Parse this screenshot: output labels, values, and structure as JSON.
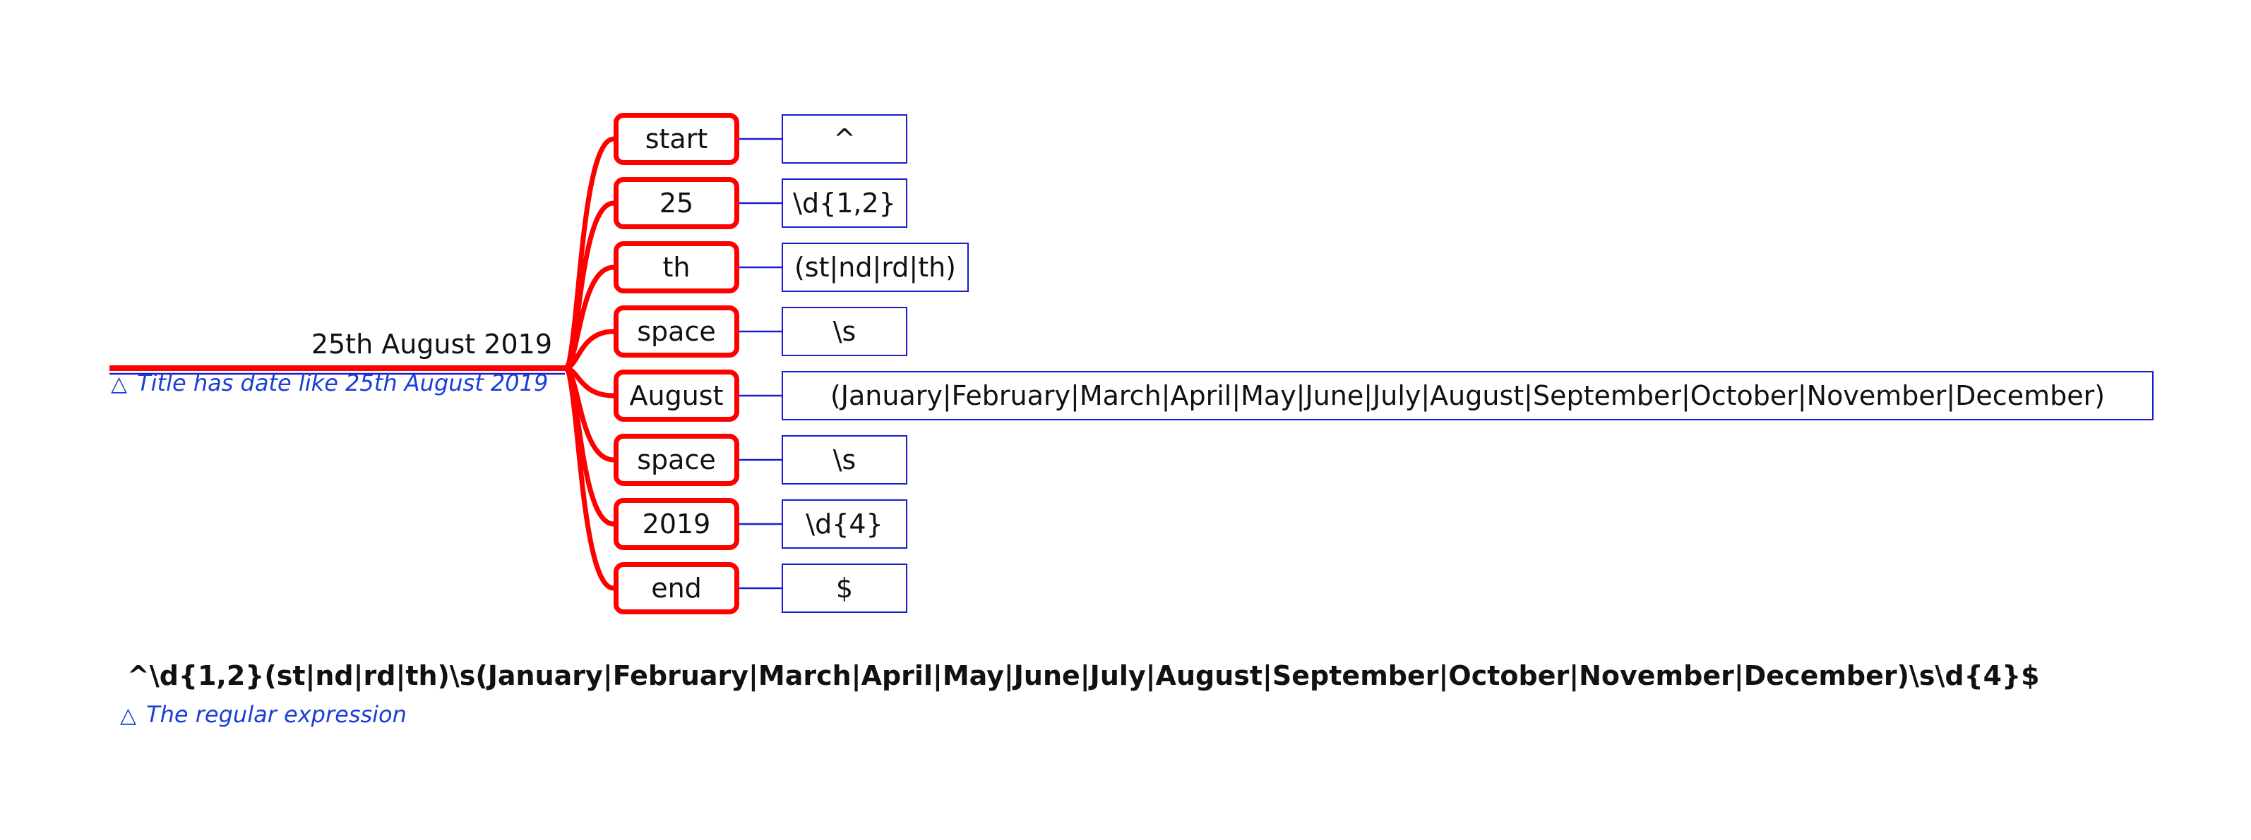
{
  "root": {
    "label": "25th August 2019",
    "note": "Title has date like 25th August 2019"
  },
  "branches": [
    {
      "label": "start",
      "pattern": "^"
    },
    {
      "label": "25",
      "pattern": "\\d{1,2}"
    },
    {
      "label": "th",
      "pattern": "(st|nd|rd|th)"
    },
    {
      "label": "space",
      "pattern": "\\s"
    },
    {
      "label": "August",
      "pattern": "(January|February|March|April|May|June|July|August|September|October|November|December)"
    },
    {
      "label": "space",
      "pattern": "\\s"
    },
    {
      "label": "2019",
      "pattern": "\\d{4}"
    },
    {
      "label": "end",
      "pattern": "$"
    }
  ],
  "regex": {
    "text": "^\\d{1,2}(st|nd|rd|th)\\s(January|February|March|April|May|June|July|August|September|October|November|December)\\s\\d{4}$",
    "note": "The regular expression"
  },
  "colors": {
    "node_border": "#ff0000",
    "pattern_border": "#1c1ccf",
    "note_text": "#1a3fd6"
  },
  "icons": {
    "note": "note-triangle-icon"
  }
}
